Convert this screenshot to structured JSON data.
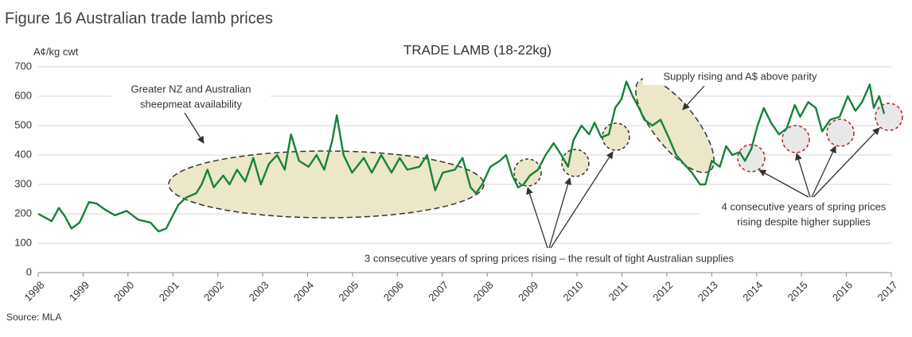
{
  "chart_data": {
    "type": "line",
    "figure_title": "Figure 16 Australian trade lamb prices",
    "title": "TRADE LAMB (18-22kg)",
    "ylabel": "A¢/kg cwt",
    "source": "Source: MLA",
    "annotations": {
      "availability": [
        "Greater NZ and Australian",
        "sheepmeat availability"
      ],
      "parity": "Supply rising and A$ above parity",
      "three_years": "3 consecutive years of spring prices rising – the result of tight Australian supplies",
      "four_years": [
        "4 consecutive years of spring prices",
        "rising despite higher supplies"
      ]
    },
    "xlim": [
      1998,
      2017
    ],
    "xticks": [
      1998,
      1999,
      2000,
      2001,
      2002,
      2003,
      2004,
      2005,
      2006,
      2007,
      2008,
      2009,
      2010,
      2011,
      2012,
      2013,
      2014,
      2015,
      2016,
      2017
    ],
    "ylim": [
      0,
      700
    ],
    "yticks": [
      0,
      100,
      200,
      300,
      400,
      500,
      600,
      700
    ],
    "grid": true,
    "series": [
      {
        "name": "Trade lamb",
        "color": "#17823a",
        "x": [
          1998.0,
          1998.18,
          1998.3,
          1998.46,
          1998.6,
          1998.74,
          1998.92,
          1999.13,
          1999.3,
          1999.48,
          1999.71,
          1999.97,
          2000.23,
          2000.5,
          2000.68,
          2000.85,
          2001.12,
          2001.29,
          2001.52,
          2001.64,
          2001.77,
          2001.91,
          2002.12,
          2002.26,
          2002.43,
          2002.61,
          2002.79,
          2002.96,
          2003.14,
          2003.32,
          2003.49,
          2003.63,
          2003.81,
          2004.02,
          2004.2,
          2004.37,
          2004.55,
          2004.65,
          2004.8,
          2004.99,
          2005.25,
          2005.43,
          2005.64,
          2005.87,
          2006.05,
          2006.22,
          2006.49,
          2006.66,
          2006.84,
          2007.01,
          2007.28,
          2007.45,
          2007.63,
          2007.75,
          2007.89,
          2008.07,
          2008.28,
          2008.42,
          2008.56,
          2008.69,
          2008.81,
          2008.95,
          2009.13,
          2009.3,
          2009.48,
          2009.65,
          2009.8,
          2009.92,
          2010.1,
          2010.27,
          2010.39,
          2010.54,
          2010.71,
          2010.85,
          2010.99,
          2011.1,
          2011.24,
          2011.38,
          2011.5,
          2011.68,
          2011.86,
          2012.04,
          2012.21,
          2012.38,
          2012.56,
          2012.74,
          2012.86,
          2013.0,
          2013.18,
          2013.32,
          2013.46,
          2013.62,
          2013.74,
          2013.88,
          2014.02,
          2014.16,
          2014.32,
          2014.5,
          2014.67,
          2014.85,
          2014.97,
          2015.15,
          2015.32,
          2015.46,
          2015.64,
          2015.85,
          2016.03,
          2016.2,
          2016.35,
          2016.52,
          2016.61,
          2016.73,
          2016.84
        ],
        "values": [
          200,
          185,
          175,
          220,
          190,
          150,
          170,
          240,
          235,
          215,
          195,
          210,
          180,
          170,
          140,
          150,
          230,
          255,
          270,
          300,
          350,
          290,
          330,
          300,
          350,
          310,
          390,
          300,
          370,
          400,
          350,
          470,
          380,
          360,
          400,
          350,
          450,
          535,
          400,
          340,
          390,
          340,
          400,
          340,
          390,
          350,
          360,
          400,
          280,
          340,
          350,
          390,
          290,
          270,
          300,
          360,
          380,
          400,
          330,
          290,
          300,
          330,
          350,
          400,
          440,
          400,
          360,
          450,
          500,
          470,
          510,
          460,
          470,
          560,
          590,
          650,
          600,
          560,
          520,
          500,
          520,
          460,
          400,
          370,
          340,
          300,
          300,
          380,
          360,
          430,
          400,
          410,
          380,
          420,
          500,
          560,
          510,
          470,
          490,
          570,
          530,
          580,
          560,
          480,
          520,
          530,
          600,
          550,
          580,
          640,
          560,
          600,
          540
        ]
      }
    ]
  }
}
